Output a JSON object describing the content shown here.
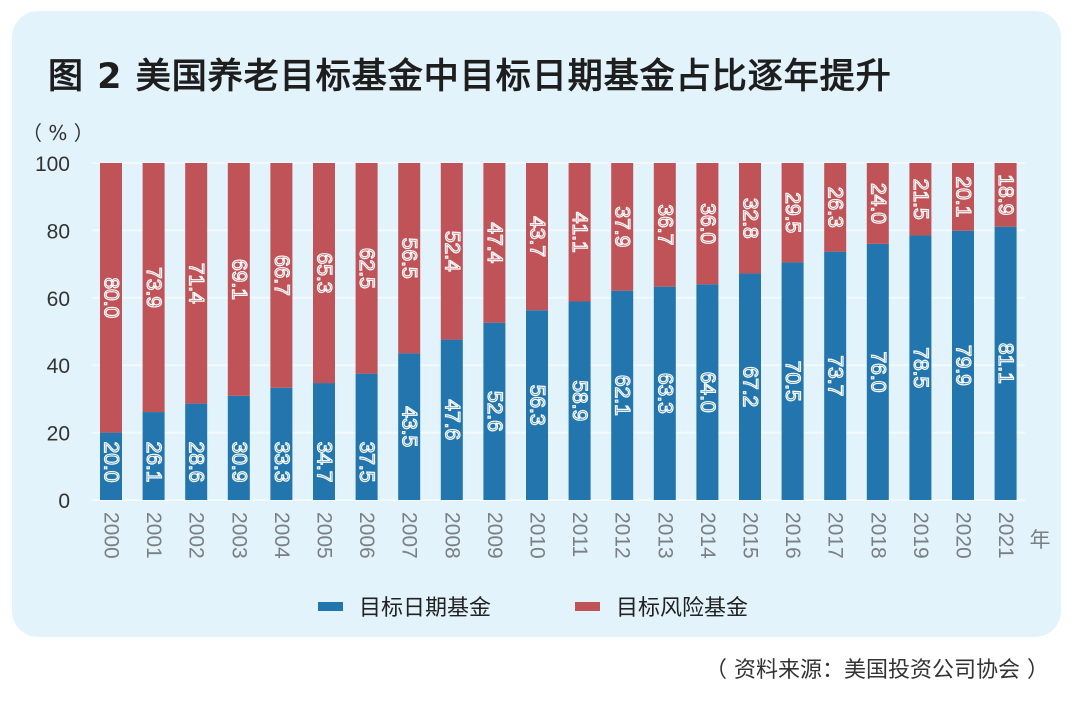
{
  "title": "图 2  美国养老目标基金中目标日期基金占比逐年提升",
  "source": "（ 资料来源：美国投资公司协会 ）",
  "colors": {
    "target_date": "#2276ad",
    "target_risk": "#bf5358",
    "panel": "#e3f3fb"
  },
  "chart_data": {
    "type": "bar",
    "stacked": true,
    "title": "图 2  美国养老目标基金中目标日期基金占比逐年提升",
    "ylabel": "（ % ）",
    "xlabel": "年",
    "ylim": [
      0,
      100
    ],
    "yticks": [
      0,
      20,
      40,
      60,
      80,
      100
    ],
    "grid": true,
    "legend_position": "bottom",
    "categories": [
      "2000",
      "2001",
      "2002",
      "2003",
      "2004",
      "2005",
      "2006",
      "2007",
      "2008",
      "2009",
      "2010",
      "2011",
      "2012",
      "2013",
      "2014",
      "2015",
      "2016",
      "2017",
      "2018",
      "2019",
      "2020",
      "2021"
    ],
    "series": [
      {
        "name": "目标日期基金",
        "color": "#2276ad",
        "values": [
          20.0,
          26.1,
          28.6,
          30.9,
          33.3,
          34.7,
          37.5,
          43.5,
          47.6,
          52.6,
          56.3,
          58.9,
          62.1,
          63.3,
          64.0,
          67.2,
          70.5,
          73.7,
          76.0,
          78.5,
          79.9,
          81.1
        ]
      },
      {
        "name": "目标风险基金",
        "color": "#bf5358",
        "values": [
          80.0,
          73.9,
          71.4,
          69.1,
          66.7,
          65.3,
          62.5,
          56.5,
          52.4,
          47.4,
          43.7,
          41.1,
          37.9,
          36.7,
          36.0,
          32.8,
          29.5,
          26.3,
          24.0,
          21.5,
          20.1,
          18.9
        ]
      }
    ]
  }
}
